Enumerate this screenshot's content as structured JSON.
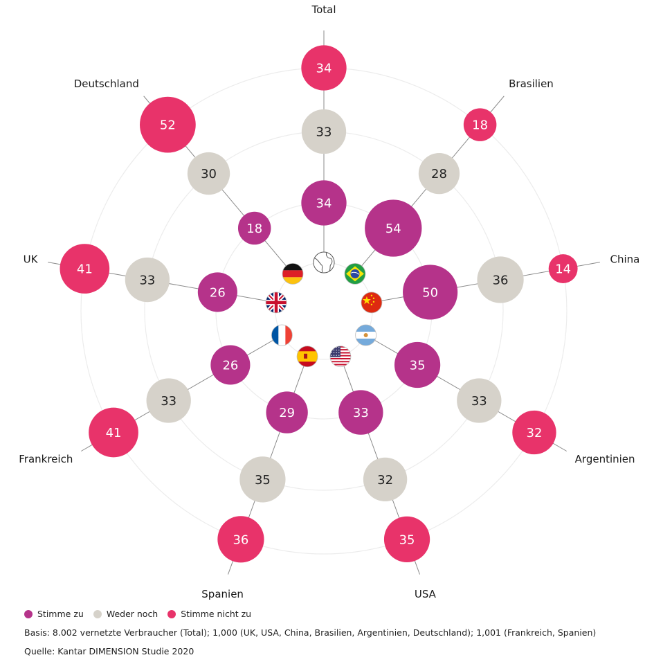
{
  "chart_data": {
    "type": "radial-bubble",
    "title": "",
    "categories": [
      "Total",
      "Brasilien",
      "China",
      "Argentinien",
      "USA",
      "Spanien",
      "Frankreich",
      "UK",
      "Deutschland"
    ],
    "category_icons": [
      "globe-icon",
      "flag-brazil-icon",
      "flag-china-icon",
      "flag-argentina-icon",
      "flag-usa-icon",
      "flag-spain-icon",
      "flag-france-icon",
      "flag-uk-icon",
      "flag-germany-icon"
    ],
    "series": [
      {
        "name": "Stimme zu",
        "color": "#B5338A",
        "text_color": "#ffffff",
        "values": [
          34,
          54,
          50,
          35,
          33,
          29,
          26,
          26,
          18
        ]
      },
      {
        "name": "Weder noch",
        "color": "#D6D2CA",
        "text_color": "#222222",
        "values": [
          33,
          28,
          36,
          33,
          32,
          35,
          33,
          33,
          30
        ]
      },
      {
        "name": "Stimme nicht zu",
        "color": "#E8336A",
        "text_color": "#ffffff",
        "values": [
          34,
          18,
          14,
          32,
          35,
          36,
          41,
          41,
          52
        ]
      }
    ],
    "unit": "%",
    "grid": true,
    "legend_position": "bottom-left"
  },
  "legend": {
    "items": [
      {
        "label": "Stimme zu",
        "color": "#B5338A"
      },
      {
        "label": "Weder noch",
        "color": "#D6D2CA"
      },
      {
        "label": "Stimme nicht zu",
        "color": "#E8336A"
      }
    ]
  },
  "notes": {
    "basis": "Basis: 8.002 vernetzte Verbraucher (Total); 1,000 (UK, USA, China, Brasilien, Argentinien, Deutschland); 1,001 (Frankreich, Spanien)",
    "source": "Quelle: Kantar DIMENSION Studie 2020"
  }
}
